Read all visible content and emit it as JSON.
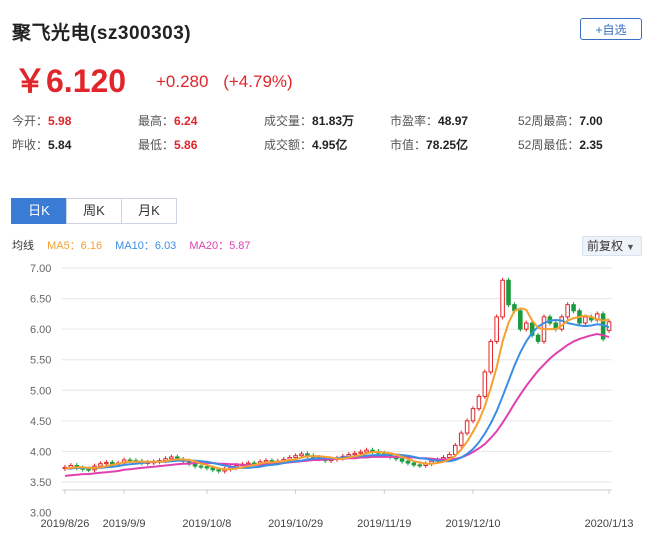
{
  "header": {
    "title": "聚飞光电(sz300303)",
    "fav_label": "+自选"
  },
  "quote": {
    "price": "￥6.120",
    "change": "+0.280",
    "change_pct": "(+4.79%)"
  },
  "stats": [
    [
      {
        "label": "今开：",
        "value": "5.98",
        "red": true
      },
      {
        "label": "最高：",
        "value": "6.24",
        "red": true
      },
      {
        "label": "成交量：",
        "value": "81.83万",
        "red": false
      },
      {
        "label": "市盈率：",
        "value": "48.97",
        "red": false
      },
      {
        "label": "52周最高：",
        "value": "7.00",
        "red": false
      }
    ],
    [
      {
        "label": "昨收：",
        "value": "5.84",
        "red": false
      },
      {
        "label": "最低：",
        "value": "5.86",
        "red": true
      },
      {
        "label": "成交额：",
        "value": "4.95亿",
        "red": false
      },
      {
        "label": "市值：",
        "value": "78.25亿",
        "red": false
      },
      {
        "label": "52周最低：",
        "value": "2.35",
        "red": false
      }
    ]
  ],
  "tabs": [
    "日K",
    "周K",
    "月K"
  ],
  "active_tab": 0,
  "ma_legend": {
    "label": "均线",
    "ma5": "MA5：6.16",
    "ma10": "MA10：6.03",
    "ma20": "MA20：5.87"
  },
  "adjust_label": "前复权",
  "colors": {
    "up": "#e0262b",
    "down": "#1a9b3c",
    "ma5": "#f5a030",
    "ma10": "#3a8ee6",
    "ma20": "#e040b0",
    "accent": "#3a7bd5"
  },
  "chart_data": {
    "type": "candlestick",
    "y_ticks": [
      "7.00",
      "6.50",
      "6.00",
      "5.50",
      "5.00",
      "4.50",
      "4.00",
      "3.50",
      "3.00"
    ],
    "ylim": [
      3.0,
      7.0
    ],
    "x_ticks": [
      {
        "label": "2019/8/26",
        "idx": 0
      },
      {
        "label": "2019/9/9",
        "idx": 10
      },
      {
        "label": "2019/10/8",
        "idx": 24
      },
      {
        "label": "2019/10/29",
        "idx": 39
      },
      {
        "label": "2019/11/19",
        "idx": 54
      },
      {
        "label": "2019/12/10",
        "idx": 69
      },
      {
        "label": "2020/1/13",
        "idx": 92
      }
    ],
    "series": {
      "open": [
        3.72,
        3.74,
        3.77,
        3.73,
        3.71,
        3.7,
        3.76,
        3.8,
        3.82,
        3.79,
        3.81,
        3.86,
        3.85,
        3.84,
        3.81,
        3.82,
        3.83,
        3.85,
        3.88,
        3.91,
        3.87,
        3.84,
        3.8,
        3.76,
        3.75,
        3.73,
        3.7,
        3.68,
        3.71,
        3.74,
        3.77,
        3.79,
        3.81,
        3.8,
        3.83,
        3.85,
        3.82,
        3.84,
        3.87,
        3.9,
        3.93,
        3.96,
        3.93,
        3.9,
        3.88,
        3.85,
        3.87,
        3.89,
        3.92,
        3.95,
        3.97,
        3.99,
        4.02,
        4.0,
        3.97,
        3.94,
        3.91,
        3.88,
        3.84,
        3.81,
        3.78,
        3.77,
        3.8,
        3.84,
        3.86,
        3.9,
        3.95,
        4.1,
        4.3,
        4.5,
        4.7,
        4.9,
        5.3,
        5.8,
        6.2,
        6.8,
        6.4,
        6.3,
        6.0,
        6.1,
        5.9,
        5.8,
        6.2,
        6.1,
        6.0,
        6.2,
        6.4,
        6.3,
        6.1,
        6.2,
        6.15,
        6.25,
        5.98
      ],
      "close": [
        3.74,
        3.77,
        3.73,
        3.71,
        3.7,
        3.76,
        3.8,
        3.82,
        3.79,
        3.81,
        3.86,
        3.85,
        3.84,
        3.81,
        3.82,
        3.83,
        3.85,
        3.88,
        3.91,
        3.87,
        3.84,
        3.8,
        3.76,
        3.75,
        3.73,
        3.7,
        3.68,
        3.71,
        3.74,
        3.77,
        3.79,
        3.81,
        3.8,
        3.83,
        3.85,
        3.82,
        3.84,
        3.87,
        3.9,
        3.93,
        3.96,
        3.93,
        3.9,
        3.88,
        3.85,
        3.87,
        3.89,
        3.92,
        3.95,
        3.97,
        3.99,
        4.02,
        4.0,
        3.97,
        3.94,
        3.91,
        3.88,
        3.84,
        3.81,
        3.78,
        3.77,
        3.8,
        3.84,
        3.86,
        3.9,
        3.95,
        4.1,
        4.3,
        4.5,
        4.7,
        4.9,
        5.3,
        5.8,
        6.2,
        6.8,
        6.4,
        6.3,
        6.0,
        6.1,
        5.9,
        5.8,
        6.2,
        6.1,
        6.0,
        6.2,
        6.4,
        6.3,
        6.1,
        6.2,
        6.15,
        6.25,
        5.84,
        6.12
      ],
      "ma5": [
        3.72,
        3.73,
        3.74,
        3.74,
        3.73,
        3.73,
        3.74,
        3.76,
        3.78,
        3.8,
        3.82,
        3.83,
        3.83,
        3.83,
        3.83,
        3.83,
        3.83,
        3.84,
        3.86,
        3.87,
        3.87,
        3.86,
        3.84,
        3.8,
        3.78,
        3.75,
        3.72,
        3.71,
        3.71,
        3.72,
        3.74,
        3.76,
        3.78,
        3.8,
        3.82,
        3.82,
        3.83,
        3.84,
        3.86,
        3.87,
        3.9,
        3.92,
        3.92,
        3.92,
        3.91,
        3.9,
        3.88,
        3.88,
        3.9,
        3.92,
        3.94,
        3.97,
        3.99,
        3.99,
        3.98,
        3.97,
        3.95,
        3.91,
        3.88,
        3.84,
        3.82,
        3.8,
        3.8,
        3.81,
        3.83,
        3.87,
        3.93,
        4.03,
        4.16,
        4.32,
        4.5,
        4.74,
        5.04,
        5.38,
        5.8,
        6.1,
        6.3,
        6.34,
        6.32,
        6.14,
        6.02,
        6.0,
        6.0,
        6.0,
        6.06,
        6.14,
        6.18,
        6.2,
        6.22,
        6.2,
        6.16,
        6.14,
        6.16
      ],
      "ma10": [
        3.72,
        3.72,
        3.73,
        3.73,
        3.73,
        3.73,
        3.73,
        3.74,
        3.75,
        3.76,
        3.78,
        3.79,
        3.8,
        3.81,
        3.82,
        3.83,
        3.83,
        3.83,
        3.84,
        3.85,
        3.85,
        3.85,
        3.85,
        3.84,
        3.83,
        3.81,
        3.79,
        3.77,
        3.75,
        3.74,
        3.73,
        3.73,
        3.74,
        3.75,
        3.77,
        3.78,
        3.79,
        3.81,
        3.83,
        3.84,
        3.85,
        3.87,
        3.88,
        3.89,
        3.89,
        3.89,
        3.89,
        3.9,
        3.91,
        3.92,
        3.92,
        3.93,
        3.94,
        3.94,
        3.94,
        3.95,
        3.95,
        3.94,
        3.93,
        3.91,
        3.89,
        3.88,
        3.86,
        3.85,
        3.84,
        3.84,
        3.86,
        3.9,
        3.96,
        4.04,
        4.15,
        4.29,
        4.46,
        4.66,
        4.9,
        5.15,
        5.4,
        5.62,
        5.8,
        5.94,
        6.04,
        6.1,
        6.14,
        6.15,
        6.14,
        6.1,
        6.08,
        6.06,
        6.05,
        6.06,
        6.08,
        6.07,
        6.03
      ],
      "ma20": [
        3.6,
        3.61,
        3.62,
        3.63,
        3.63,
        3.64,
        3.65,
        3.66,
        3.67,
        3.68,
        3.7,
        3.71,
        3.72,
        3.73,
        3.74,
        3.75,
        3.76,
        3.77,
        3.78,
        3.79,
        3.8,
        3.8,
        3.81,
        3.81,
        3.81,
        3.81,
        3.8,
        3.8,
        3.79,
        3.79,
        3.78,
        3.78,
        3.78,
        3.78,
        3.79,
        3.79,
        3.8,
        3.81,
        3.82,
        3.83,
        3.84,
        3.85,
        3.86,
        3.86,
        3.87,
        3.87,
        3.88,
        3.88,
        3.89,
        3.89,
        3.9,
        3.9,
        3.91,
        3.91,
        3.91,
        3.91,
        3.91,
        3.91,
        3.9,
        3.9,
        3.89,
        3.89,
        3.88,
        3.87,
        3.87,
        3.87,
        3.88,
        3.9,
        3.94,
        3.99,
        4.05,
        4.12,
        4.22,
        4.33,
        4.47,
        4.62,
        4.78,
        4.93,
        5.07,
        5.2,
        5.32,
        5.42,
        5.52,
        5.6,
        5.67,
        5.74,
        5.8,
        5.84,
        5.87,
        5.9,
        5.92,
        5.9,
        5.87
      ]
    }
  }
}
